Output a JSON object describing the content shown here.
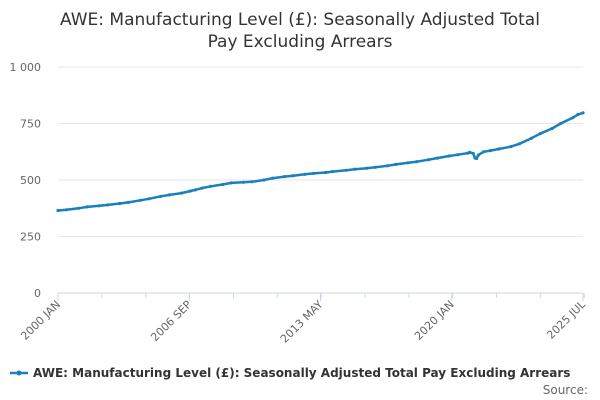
{
  "chart_data": {
    "type": "line",
    "title": "AWE: Manufacturing Level (£): Seasonally Adjusted Total Pay Excluding Arrears",
    "title_lines": [
      "AWE: Manufacturing Level (£): Seasonally Adjusted Total",
      "Pay Excluding Arrears"
    ],
    "source_label": "Source:",
    "y_ticks": [
      {
        "value": 0,
        "label": "0"
      },
      {
        "value": 250,
        "label": "250"
      },
      {
        "value": 500,
        "label": "500"
      },
      {
        "value": 750,
        "label": "750"
      },
      {
        "value": 1000,
        "label": "1 000"
      }
    ],
    "x_tick_labels": [
      "2000 JAN",
      "2006 SEP",
      "2013 MAY",
      "2020 JAN",
      "2025 JUL"
    ],
    "ylim": [
      0,
      1000
    ],
    "xlim": [
      "2000-01",
      "2025-07"
    ],
    "grid": true,
    "legend_position": "bottom",
    "color": "#1a80bb",
    "series": [
      {
        "name": "AWE: Manufacturing Level (£): Seasonally Adjusted Total Pay Excluding Arrears",
        "points": [
          [
            "2000-01",
            365
          ],
          [
            "2000-06",
            368
          ],
          [
            "2001-01",
            375
          ],
          [
            "2001-06",
            381
          ],
          [
            "2002-01",
            386
          ],
          [
            "2002-06",
            390
          ],
          [
            "2003-01",
            396
          ],
          [
            "2003-06",
            401
          ],
          [
            "2004-01",
            410
          ],
          [
            "2004-06",
            417
          ],
          [
            "2005-01",
            428
          ],
          [
            "2005-06",
            434
          ],
          [
            "2006-01",
            442
          ],
          [
            "2006-06",
            451
          ],
          [
            "2006-09",
            456
          ],
          [
            "2007-01",
            464
          ],
          [
            "2007-06",
            472
          ],
          [
            "2008-01",
            480
          ],
          [
            "2008-06",
            487
          ],
          [
            "2009-01",
            490
          ],
          [
            "2009-06",
            492
          ],
          [
            "2010-01",
            500
          ],
          [
            "2010-06",
            508
          ],
          [
            "2011-01",
            515
          ],
          [
            "2011-06",
            519
          ],
          [
            "2012-01",
            525
          ],
          [
            "2012-06",
            529
          ],
          [
            "2013-01",
            533
          ],
          [
            "2013-05",
            537
          ],
          [
            "2014-01",
            543
          ],
          [
            "2014-06",
            548
          ],
          [
            "2015-01",
            552
          ],
          [
            "2015-06",
            556
          ],
          [
            "2016-01",
            563
          ],
          [
            "2016-06",
            569
          ],
          [
            "2017-01",
            576
          ],
          [
            "2017-06",
            581
          ],
          [
            "2018-01",
            590
          ],
          [
            "2018-06",
            597
          ],
          [
            "2019-01",
            606
          ],
          [
            "2019-06",
            612
          ],
          [
            "2019-12",
            619
          ],
          [
            "2020-01",
            622
          ],
          [
            "2020-03",
            618
          ],
          [
            "2020-04",
            598
          ],
          [
            "2020-05",
            595
          ],
          [
            "2020-06",
            610
          ],
          [
            "2020-09",
            625
          ],
          [
            "2021-01",
            630
          ],
          [
            "2021-06",
            637
          ],
          [
            "2022-01",
            648
          ],
          [
            "2022-06",
            660
          ],
          [
            "2023-01",
            685
          ],
          [
            "2023-06",
            705
          ],
          [
            "2024-01",
            728
          ],
          [
            "2024-06",
            750
          ],
          [
            "2025-01",
            775
          ],
          [
            "2025-04",
            790
          ],
          [
            "2025-07",
            797
          ]
        ]
      }
    ]
  }
}
